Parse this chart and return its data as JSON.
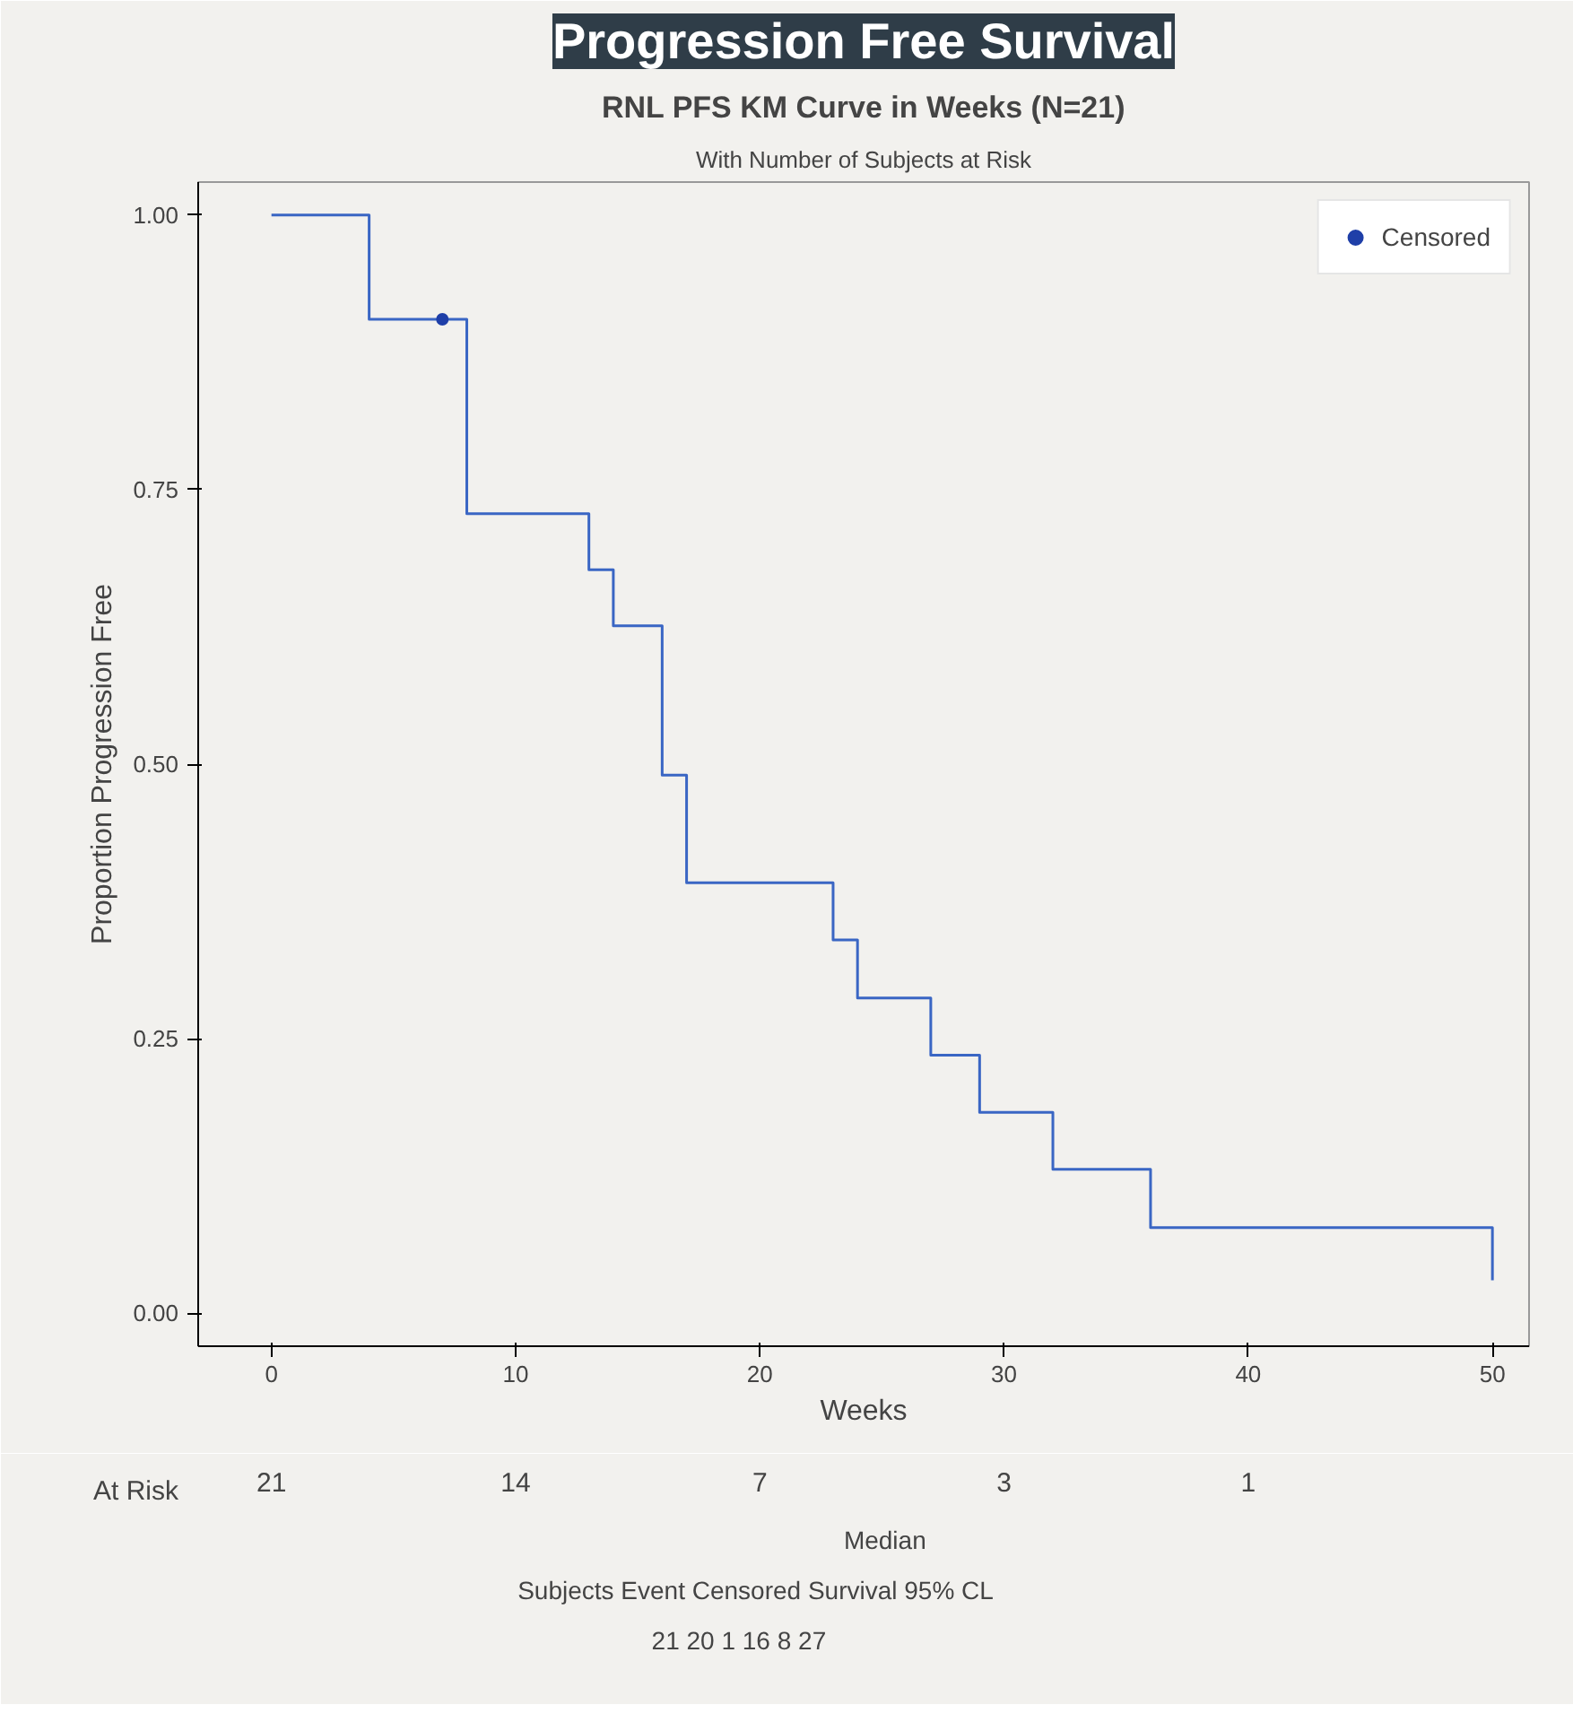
{
  "chart_data": {
    "type": "step",
    "title": "Progression Free Survival",
    "subtitle": "RNL PFS KM Curve in Weeks (N=21)",
    "xlabel": "Weeks",
    "ylabel": "Proportion Progression Free",
    "xlim": [
      -3,
      51.5
    ],
    "ylim": [
      -0.03,
      1.03
    ],
    "xticks": [
      0,
      10,
      20,
      30,
      40,
      50
    ],
    "yticks": [
      {
        "value": 0,
        "label": "0.00"
      },
      {
        "value": 0.25,
        "label": "0.25"
      },
      {
        "value": 0.5,
        "label": "0.50"
      },
      {
        "value": 0.75,
        "label": "0.75"
      },
      {
        "value": 1,
        "label": "1.00"
      }
    ],
    "series": [
      {
        "color": "#3a66c4",
        "x": [
          0,
          4,
          8,
          13,
          14,
          16,
          17,
          23,
          24,
          27,
          29,
          32,
          36,
          50
        ],
        "values": [
          1,
          0.905,
          0.728,
          0.677,
          0.626,
          0.49,
          0.392,
          0.34,
          0.287,
          0.235,
          0.183,
          0.131,
          0.078,
          0.03
        ]
      },
      {
        "type": "scatter",
        "name": "Censored",
        "color": "#1f3fa8",
        "marker": "circle",
        "x": [
          7
        ],
        "values": [
          0.905
        ]
      }
    ],
    "legend": "top right",
    "grid": false,
    "annotations": [
      "With Number of Subjects at Risk",
      "At Risk",
      "21",
      "14",
      "7",
      "3",
      "1",
      "Median",
      "Subjects  Event  Censored  Survival  95%  CL",
      "21      20           1        16     8    27"
    ]
  }
}
